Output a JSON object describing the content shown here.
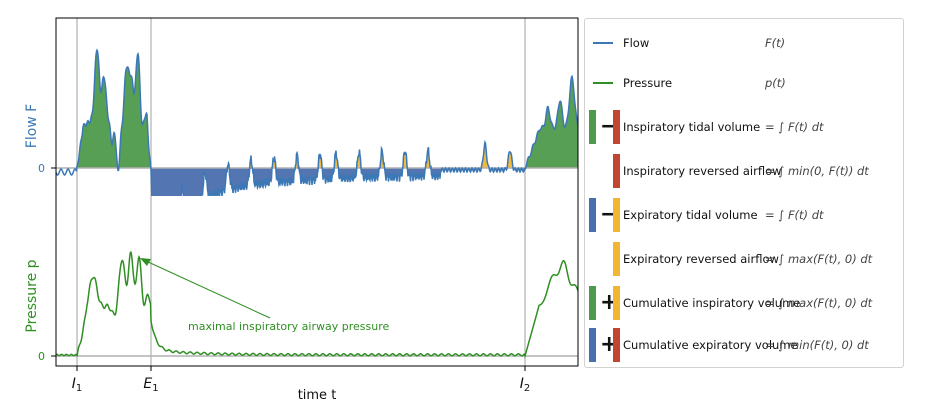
{
  "chart_data": {
    "type": "line",
    "xlabel": "time t",
    "x_ticks": [
      "I1",
      "E1",
      "I2"
    ],
    "top_panel": {
      "ylabel": "Flow F",
      "y_tick": "0",
      "series": [
        {
          "name": "Flow",
          "color": "#3b78b5"
        }
      ],
      "fill_regions": [
        {
          "legend": "Inspiratory tidal volume",
          "color": "#4e9a4c"
        },
        {
          "legend": "Inspiratory reversed airflow",
          "color": "#c0462f"
        },
        {
          "legend": "Expiratory tidal volume",
          "color": "#4a6fae"
        },
        {
          "legend": "Expiratory reversed airflow",
          "color": "#f2b632"
        }
      ]
    },
    "bottom_panel": {
      "ylabel": "Pressure p",
      "y_tick": "0",
      "series": [
        {
          "name": "Pressure",
          "color": "#2f8f22"
        }
      ],
      "annotation": "maximal inspiratory airway pressure"
    }
  },
  "colors": {
    "flow": "#3b78b5",
    "pressure": "#2f8f22",
    "green": "#4e9a4c",
    "red": "#c0462f",
    "blue": "#4a6fae",
    "yellow": "#f2b632",
    "vline": "#b0b0b0"
  },
  "legend": {
    "flow": {
      "label": "Flow",
      "formula": "F(t)"
    },
    "pressure": {
      "label": "Pressure",
      "formula": "p(t)"
    },
    "rows": [
      {
        "label": "Inspiratory tidal volume",
        "op": "−",
        "formula": "= ∫ F(t) dt"
      },
      {
        "label": "Inspiratory reversed airflow",
        "op": "",
        "formula": "= ∫ min(0, F(t)) dt"
      },
      {
        "label": "Expiratory tidal volume",
        "op": "−",
        "formula": "= ∫ F(t) dt"
      },
      {
        "label": "Expiratory reversed airflow",
        "op": "",
        "formula": "= ∫ max(F(t), 0) dt"
      },
      {
        "label": "Cumulative inspiratory volume",
        "op": "+",
        "formula": "= ∫ max(F(t), 0) dt"
      },
      {
        "label": "Cumulative expiratory volume",
        "op": "+",
        "formula": "= ∫ min(F(t), 0) dt"
      }
    ]
  }
}
